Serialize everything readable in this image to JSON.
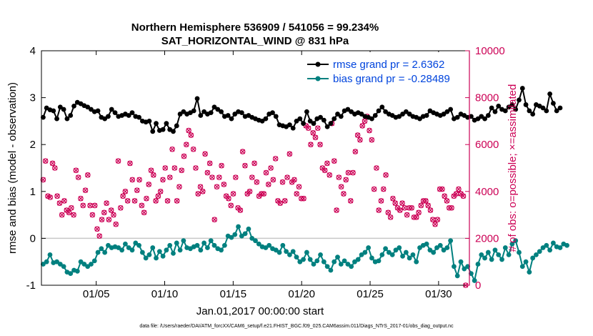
{
  "colors": {
    "rmse": "#000000",
    "bias": "#00807f",
    "obs": "#cc0055",
    "legend_text": "#0044dd",
    "zero_line": "#c8c8c8",
    "axis": "#000000"
  },
  "chart_data": {
    "type": "line",
    "title_line1": "Northern Hemisphere 536909 / 541056 = 99.234%",
    "title_line2": "SAT_HORIZONTAL_WIND @ 831 hPa",
    "xlabel": "Jan.01,2017 00:00:00 start",
    "ylabel_left": "rmse and bias (model - observation)",
    "ylabel_right": "# of obs: o=possible; ×=assimilated",
    "footer": "data file: /Users/raeder/DAI/ATM_forcXX/CAM6_setup/f.e21.FHIST_BGC.f09_025.CAM6assim.011/Diags_NTrS_2017-01/obs_diag_output.nc",
    "xlim": [
      1.0,
      32.25
    ],
    "ylim_left": [
      -1,
      4
    ],
    "ylim_right": [
      0,
      10000
    ],
    "x_ticks": [
      5,
      10,
      15,
      20,
      25,
      30
    ],
    "x_tick_labels": [
      "01/05",
      "01/10",
      "01/15",
      "01/20",
      "01/25",
      "01/30"
    ],
    "y_left_ticks": [
      "-1",
      "0",
      "1",
      "2",
      "3",
      "4"
    ],
    "y_right_ticks": [
      "0",
      "2000",
      "4000",
      "6000",
      "8000",
      "10000"
    ],
    "grid": false,
    "legend_position": "top-right",
    "legend": [
      "rmse grand pr = 2.6362",
      "bias grand pr = -0.28489"
    ],
    "x_start": 1.125,
    "x_step": 0.25,
    "series": [
      {
        "name": "rmse grand pr = 2.6362",
        "axis": "left",
        "values": [
          2.58,
          2.78,
          2.74,
          2.72,
          2.55,
          2.8,
          2.75,
          2.55,
          2.62,
          2.82,
          2.9,
          2.87,
          2.83,
          2.8,
          2.75,
          2.7,
          2.72,
          2.58,
          2.55,
          2.6,
          2.75,
          2.68,
          2.6,
          2.62,
          2.65,
          2.62,
          2.68,
          2.6,
          2.58,
          2.5,
          2.48,
          2.5,
          2.28,
          2.45,
          2.3,
          2.32,
          2.45,
          2.32,
          2.28,
          2.4,
          2.65,
          2.7,
          2.65,
          2.68,
          2.72,
          2.98,
          2.62,
          2.7,
          2.65,
          2.68,
          2.8,
          2.75,
          2.7,
          2.6,
          2.62,
          2.55,
          2.65,
          2.7,
          2.68,
          2.6,
          2.62,
          2.58,
          2.55,
          2.52,
          2.5,
          2.55,
          2.65,
          2.68,
          2.6,
          2.42,
          2.4,
          2.38,
          2.42,
          2.35,
          2.5,
          2.55,
          2.45,
          2.7,
          2.5,
          2.45,
          2.55,
          2.58,
          2.52,
          2.38,
          2.45,
          2.55,
          2.65,
          2.6,
          2.72,
          2.75,
          2.7,
          2.65,
          2.68,
          2.65,
          2.6,
          2.58,
          2.55,
          2.62,
          2.72,
          2.8,
          2.7,
          2.65,
          2.62,
          2.58,
          2.6,
          2.65,
          2.7,
          2.65,
          2.6,
          2.58,
          2.55,
          2.6,
          2.62,
          2.72,
          2.68,
          2.65,
          2.62,
          2.65,
          2.7,
          2.75,
          2.55,
          2.58,
          2.65,
          2.62,
          2.58,
          2.6,
          2.52,
          2.55,
          2.6,
          2.55,
          2.62,
          2.78,
          2.7,
          2.82,
          2.75,
          2.72,
          2.8,
          2.85,
          2.75,
          2.95,
          3.2,
          2.85,
          2.72,
          2.65,
          2.85,
          2.82,
          2.78,
          2.72,
          3.08,
          2.88,
          2.72,
          2.78
        ]
      },
      {
        "name": "bias grand pr = -0.28489",
        "axis": "left",
        "values": [
          -0.55,
          -0.5,
          -0.35,
          -0.52,
          -0.5,
          -0.55,
          -0.6,
          -0.72,
          -0.75,
          -0.68,
          -0.7,
          -0.5,
          -0.55,
          -0.6,
          -0.55,
          -0.48,
          -0.3,
          -0.22,
          -0.3,
          -0.15,
          -0.2,
          -0.18,
          -0.2,
          -0.25,
          -0.12,
          -0.2,
          -0.25,
          -0.1,
          -0.15,
          -0.3,
          -0.42,
          -0.35,
          -0.2,
          -0.42,
          -0.28,
          -0.38,
          -0.25,
          -0.15,
          -0.32,
          -0.1,
          -0.25,
          -0.05,
          -0.2,
          -0.22,
          -0.18,
          -0.15,
          -0.25,
          -0.1,
          -0.2,
          -0.05,
          -0.15,
          -0.22,
          -0.25,
          -0.15,
          0.05,
          0.02,
          0.08,
          0.25,
          0.05,
          0.1,
          0.2,
          0.0,
          -0.05,
          -0.12,
          -0.18,
          -0.2,
          -0.15,
          -0.22,
          -0.25,
          -0.3,
          -0.15,
          -0.28,
          -0.35,
          -0.28,
          -0.4,
          -0.5,
          -0.45,
          -0.3,
          -0.45,
          -0.55,
          -0.48,
          -0.35,
          -0.5,
          -0.6,
          -0.68,
          -0.5,
          -0.4,
          -0.55,
          -0.48,
          -0.55,
          -0.6,
          -0.5,
          -0.45,
          -0.35,
          -0.3,
          -0.2,
          -0.42,
          -0.5,
          -0.48,
          -0.35,
          -0.22,
          -0.3,
          -0.35,
          -0.25,
          -0.2,
          -0.38,
          -0.3,
          -0.42,
          -0.35,
          -0.5,
          -0.2,
          -0.15,
          -0.12,
          -0.25,
          -0.3,
          -0.2,
          -0.15,
          -0.25,
          -0.2,
          -0.05,
          -0.6,
          -0.8,
          -0.5,
          -0.65,
          -0.6,
          -0.75,
          -0.9,
          -0.55,
          -0.35,
          -0.42,
          -0.3,
          -0.45,
          -0.25,
          -0.35,
          -0.45,
          -0.2,
          -0.35,
          -0.12,
          -0.05,
          -0.3,
          -0.6,
          -0.5,
          -0.72,
          -0.42,
          -0.35,
          -0.28,
          -0.2,
          -0.15,
          -0.25,
          -0.1,
          -0.18,
          -0.2,
          -0.12,
          -0.15
        ]
      },
      {
        "name": "# of obs",
        "axis": "right",
        "style": "markers-only",
        "values": [
          4500,
          5300,
          3800,
          3750,
          5200,
          5000,
          3800,
          3500,
          3000,
          3600,
          3200,
          3100,
          3300,
          3000,
          4900,
          4600,
          3700,
          3400,
          4050,
          4700,
          3400,
          3000,
          3400,
          2400,
          2100,
          2800,
          3100,
          3500,
          2800,
          3200,
          3000,
          2600,
          5300,
          3300,
          3800,
          4000,
          3600,
          5200,
          4500,
          3600,
          4050,
          4500,
          3400,
          3100,
          3700,
          4300,
          4900,
          4700,
          3600,
          3800,
          4000,
          4500,
          5000,
          3600,
          4600,
          5800,
          5000,
          3600,
          4200,
          4900,
          5500,
          6000,
          6600,
          6400,
          5800,
          5000,
          3900,
          4200,
          4000,
          5600,
          4800,
          5200,
          4600,
          2800,
          4200,
          4600,
          5100,
          4300,
          3800,
          3700,
          3400,
          3900,
          4600,
          3300,
          3200,
          5700,
          5100,
          3900,
          4000,
          4600,
          5200,
          4400,
          3800,
          3900,
          3900,
          4800,
          4300,
          5000,
          4500,
          5400,
          3600,
          3500,
          4400,
          3600,
          4600,
          5600,
          4400,
          4500,
          3900,
          4200,
          3700,
          3700,
          6800,
          6700,
          6000,
          6500,
          6300,
          6700,
          6000,
          5000,
          4900,
          5200,
          4700,
          6900,
          5300,
          3200,
          4600,
          4200,
          3900,
          4500,
          4800,
          3600,
          4800,
          5700,
          6400,
          6200,
          6800,
          7000,
          7200,
          6600,
          6200,
          4100,
          5000,
          3200,
          3600,
          4100,
          4700,
          3100,
          2900,
          3700,
          3500,
          3300,
          3200,
          3500,
          3300,
          3000,
          3300,
          3300,
          2900,
          2900,
          3100,
          3400,
          3600,
          3600,
          3400,
          3200,
          2800,
          2600,
          2800,
          4100,
          4100,
          3800,
          3600,
          3300,
          3300,
          3800,
          3900,
          4100,
          3900,
          3800,
          0
        ],
        "x_start": 1.125,
        "x_step": 0.1714
      }
    ]
  }
}
